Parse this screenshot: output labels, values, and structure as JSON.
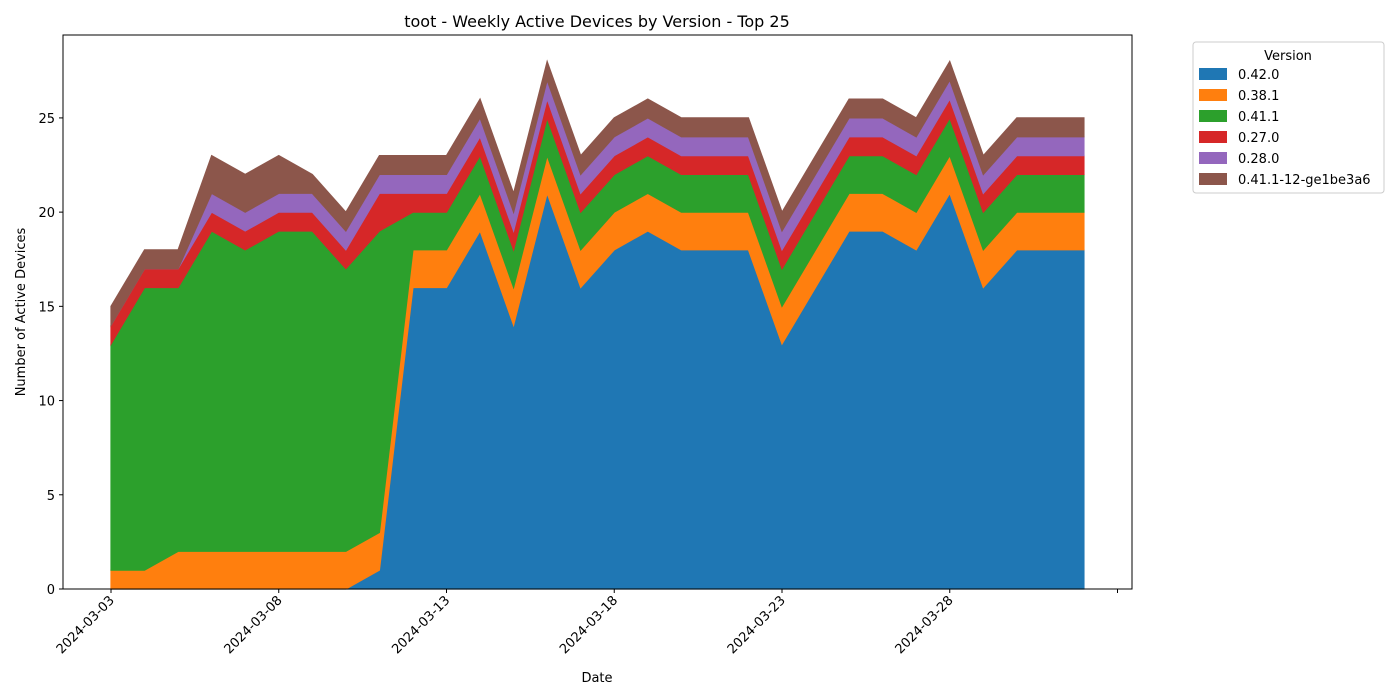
{
  "chart_data": {
    "type": "area",
    "stacked": true,
    "title": "toot - Weekly Active Devices by Version - Top 25",
    "xlabel": "Date",
    "ylabel": "Number of Active Devices",
    "x": [
      "2024-03-03",
      "2024-03-04",
      "2024-03-05",
      "2024-03-06",
      "2024-03-07",
      "2024-03-08",
      "2024-03-09",
      "2024-03-10",
      "2024-03-11",
      "2024-03-12",
      "2024-03-13",
      "2024-03-14",
      "2024-03-15",
      "2024-03-16",
      "2024-03-17",
      "2024-03-18",
      "2024-03-19",
      "2024-03-20",
      "2024-03-21",
      "2024-03-22",
      "2024-03-23",
      "2024-03-24",
      "2024-03-25",
      "2024-03-26",
      "2024-03-27",
      "2024-03-28",
      "2024-03-29",
      "2024-03-30",
      "2024-03-31",
      "2024-04-01"
    ],
    "x_tick_labels": [
      "2024-03-03",
      "2024-03-08",
      "2024-03-13",
      "2024-03-18",
      "2024-03-23",
      "2024-03-28"
    ],
    "ylim": [
      0,
      29.4
    ],
    "y_ticks": [
      0,
      5,
      10,
      15,
      20,
      25
    ],
    "legend_title": "Version",
    "legend_position": "outside-top-right",
    "grid": false,
    "series": [
      {
        "name": "0.42.0",
        "color": "#1f77b4",
        "values": [
          0,
          0,
          0,
          0,
          0,
          0,
          0,
          0,
          1,
          16,
          16,
          19,
          14,
          21,
          16,
          18,
          19,
          18,
          18,
          18,
          13,
          16,
          19,
          19,
          18,
          21,
          16,
          18,
          18,
          18
        ]
      },
      {
        "name": "0.38.1",
        "color": "#ff7f0e",
        "values": [
          1,
          1,
          2,
          2,
          2,
          2,
          2,
          2,
          2,
          2,
          2,
          2,
          2,
          2,
          2,
          2,
          2,
          2,
          2,
          2,
          2,
          2,
          2,
          2,
          2,
          2,
          2,
          2,
          2,
          2
        ]
      },
      {
        "name": "0.41.1",
        "color": "#2ca02c",
        "values": [
          12,
          15,
          14,
          17,
          16,
          17,
          17,
          15,
          16,
          2,
          2,
          2,
          2,
          2,
          2,
          2,
          2,
          2,
          2,
          2,
          2,
          2,
          2,
          2,
          2,
          2,
          2,
          2,
          2,
          2
        ]
      },
      {
        "name": "0.27.0",
        "color": "#d62728",
        "values": [
          1,
          1,
          1,
          1,
          1,
          1,
          1,
          1,
          2,
          1,
          1,
          1,
          1,
          1,
          1,
          1,
          1,
          1,
          1,
          1,
          1,
          1,
          1,
          1,
          1,
          1,
          1,
          1,
          1,
          1
        ]
      },
      {
        "name": "0.28.0",
        "color": "#9467bd",
        "values": [
          0,
          0,
          0,
          1,
          1,
          1,
          1,
          1,
          1,
          1,
          1,
          1,
          1,
          1,
          1,
          1,
          1,
          1,
          1,
          1,
          1,
          1,
          1,
          1,
          1,
          1,
          1,
          1,
          1,
          1
        ]
      },
      {
        "name": "0.41.1-12-ge1be3a6",
        "color": "#8c564b",
        "values": [
          1,
          1,
          1,
          2,
          2,
          2,
          1,
          1,
          1,
          1,
          1,
          1,
          1,
          1,
          1,
          1,
          1,
          1,
          1,
          1,
          1,
          1,
          1,
          1,
          1,
          1,
          1,
          1,
          1,
          1
        ]
      }
    ]
  }
}
